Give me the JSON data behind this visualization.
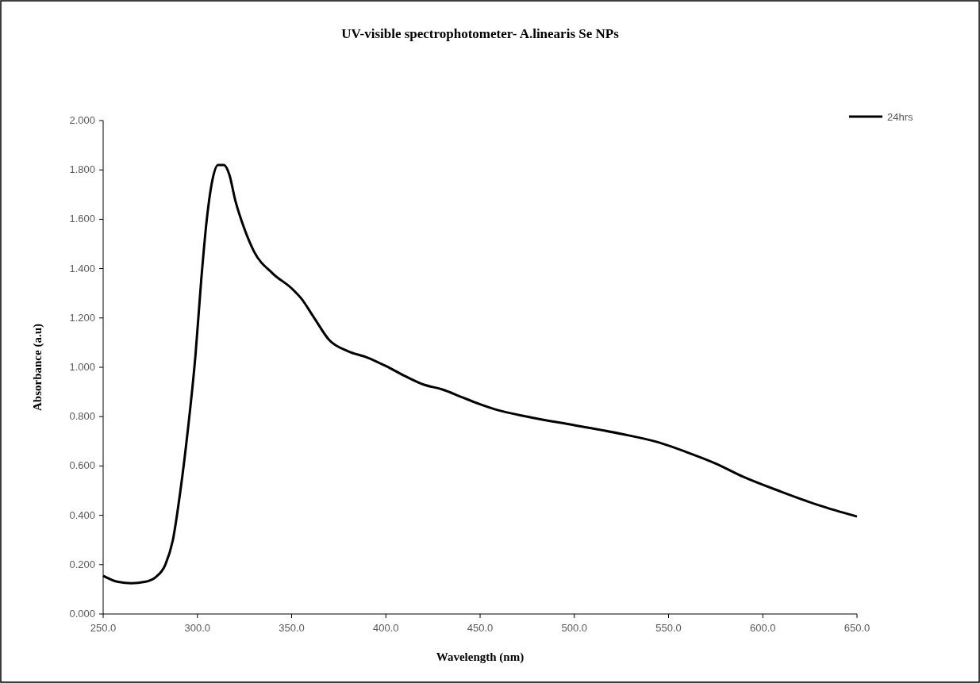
{
  "chart_data": {
    "type": "line",
    "title": "UV-visible spectrophotometer- A.linearis Se NPs",
    "xlabel": "Wavelength (nm)",
    "ylabel": "Absorbance (a.u)",
    "xlim": [
      250,
      650
    ],
    "xticks": [
      {
        "value": 250,
        "label": "250.0"
      },
      {
        "value": 300,
        "label": "300.0"
      },
      {
        "value": 350,
        "label": "350.0"
      },
      {
        "value": 400,
        "label": "400.0"
      },
      {
        "value": 450,
        "label": "450.0"
      },
      {
        "value": 500,
        "label": "500.0"
      },
      {
        "value": 550,
        "label": "550.0"
      },
      {
        "value": 600,
        "label": "600.0"
      },
      {
        "value": 650,
        "label": "650.0"
      }
    ],
    "ylim": [
      0,
      2
    ],
    "yticks": [
      {
        "value": 0,
        "label": "0.000"
      },
      {
        "value": 0.2,
        "label": "0.200"
      },
      {
        "value": 0.4,
        "label": "0.400"
      },
      {
        "value": 0.6,
        "label": "0.600"
      },
      {
        "value": 0.8,
        "label": "0.800"
      },
      {
        "value": 1,
        "label": "1.000"
      },
      {
        "value": 1.2,
        "label": "1.200"
      },
      {
        "value": 1.4,
        "label": "1.400"
      },
      {
        "value": 1.6,
        "label": "1.600"
      },
      {
        "value": 1.8,
        "label": "1.800"
      },
      {
        "value": 2,
        "label": "2.000"
      }
    ],
    "x": [
      250,
      258,
      265,
      272,
      278,
      283,
      287,
      291,
      295,
      299,
      302,
      305,
      308,
      311,
      314,
      317,
      320,
      325,
      330,
      340,
      350,
      355,
      362,
      370,
      380,
      390,
      400,
      410,
      420,
      430,
      440,
      450,
      460,
      475,
      500,
      525,
      545,
      560,
      575,
      590,
      610,
      630,
      650
    ],
    "series": [
      {
        "name": "24hrs",
        "color": "#000000",
        "values": [
          0.155,
          0.13,
          0.125,
          0.13,
          0.15,
          0.2,
          0.3,
          0.5,
          0.75,
          1.05,
          1.35,
          1.6,
          1.76,
          1.82,
          1.82,
          1.78,
          1.68,
          1.56,
          1.47,
          1.38,
          1.32,
          1.28,
          1.2,
          1.11,
          1.065,
          1.04,
          1.005,
          0.965,
          0.93,
          0.91,
          0.88,
          0.85,
          0.825,
          0.8,
          0.765,
          0.73,
          0.695,
          0.655,
          0.61,
          0.555,
          0.495,
          0.44,
          0.395
        ]
      }
    ],
    "legend": "top right",
    "grid": false,
    "marker": "none",
    "line_style": "solid"
  }
}
